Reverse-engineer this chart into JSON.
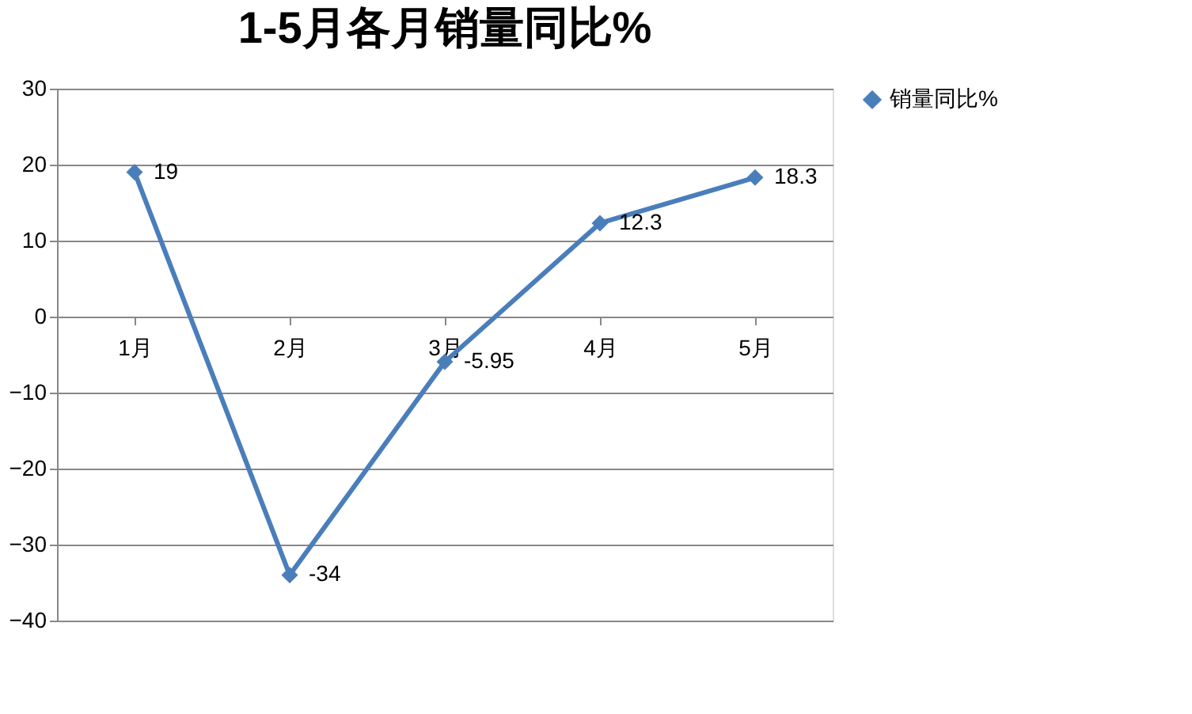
{
  "chart_data": {
    "type": "line",
    "title": "1-5月各月销量同比%",
    "categories": [
      "1月",
      "2月",
      "3月",
      "4月",
      "5月"
    ],
    "series": [
      {
        "name": "销量同比%",
        "color": "#4a7ebb",
        "values": [
          19,
          -34,
          -5.95,
          12.3,
          18.3
        ]
      }
    ],
    "ylim": [
      -40,
      30
    ],
    "yticks": [
      -40,
      -30,
      -20,
      -10,
      0,
      10,
      20,
      30
    ],
    "grid": "y",
    "legend": "right",
    "marker": "diamond",
    "line_style": "solid",
    "data_labels": true
  }
}
